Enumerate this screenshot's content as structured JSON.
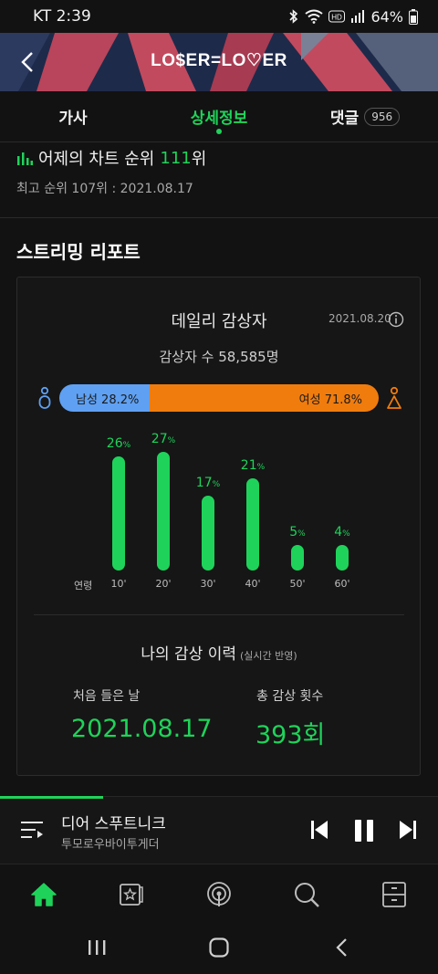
{
  "status": {
    "carrier_time": "KT 2:39",
    "battery": "64%"
  },
  "header": {
    "title": "LO$ER=LO♡ER"
  },
  "tabs": [
    {
      "label": "가사"
    },
    {
      "label": "상세정보"
    },
    {
      "label": "댓글",
      "badge": "956"
    }
  ],
  "chart_rank": {
    "label": "어제의 차트 순위",
    "rank": "111",
    "unit": "위",
    "best": "최고 순위 107위 : 2021.08.17"
  },
  "report": {
    "section_title": "스트리밍 리포트",
    "card_title": "데일리 감상자",
    "date": "2021.08.20",
    "listeners": "감상자 수 58,585명",
    "male": {
      "label": "남성 28.2%",
      "value": 28.2
    },
    "female": {
      "label": "여성 71.8%",
      "value": 71.8
    },
    "age_axis_label": "연령",
    "age_groups": [
      {
        "label": "10'",
        "value": 26
      },
      {
        "label": "20'",
        "value": 27
      },
      {
        "label": "30'",
        "value": 17
      },
      {
        "label": "40'",
        "value": 21
      },
      {
        "label": "50'",
        "value": 5
      },
      {
        "label": "60'",
        "value": 4
      }
    ],
    "pct_sign": "%"
  },
  "history": {
    "title": "나의 감상 이력",
    "note": "(실시간 반영)",
    "first_label": "처음 들은 날",
    "first_value": "2021.08.17",
    "total_label": "총 감상 횟수",
    "total_value": "393회"
  },
  "player": {
    "title": "디어 스푸트니크",
    "artist": "투모로우바이투게더",
    "progress": 0.235
  },
  "colors": {
    "accent": "#1fd35a",
    "male": "#5fa0f2",
    "female": "#f07c0d"
  }
}
